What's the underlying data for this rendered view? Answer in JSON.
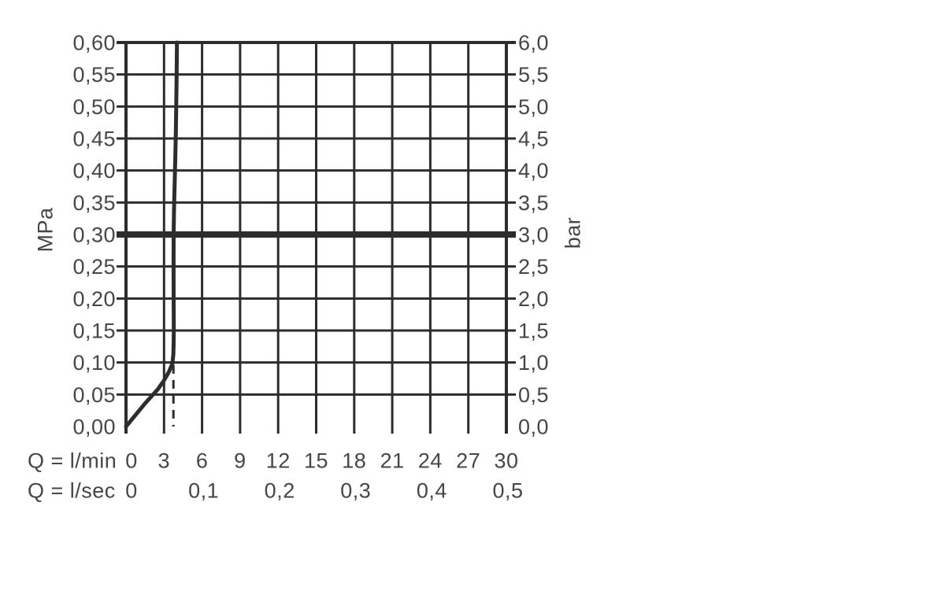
{
  "colors": {
    "background": "#ffffff",
    "line": "#2d2d2d",
    "text": "#464646"
  },
  "chart_data": {
    "type": "line",
    "grid": true,
    "y_axis_left": {
      "unit": "MPa",
      "min": 0,
      "max": 0.6,
      "step": 0.05,
      "tick_labels": [
        "0,60",
        "0,55",
        "0,50",
        "0,45",
        "0,40",
        "0,35",
        "0,30",
        "0,25",
        "0,20",
        "0,15",
        "0,10",
        "0,05",
        "0,00"
      ]
    },
    "y_axis_right": {
      "unit": "bar",
      "min": 0,
      "max": 6,
      "step": 0.5,
      "tick_labels": [
        "6,0",
        "5,5",
        "5,0",
        "4,5",
        "4,0",
        "3,5",
        "3,0",
        "2,5",
        "2,0",
        "1,5",
        "1,0",
        "0,5",
        "0,0"
      ]
    },
    "x_axis_primary": {
      "label": "Q = l/min",
      "min": 0,
      "max": 30,
      "step": 3,
      "tick_labels": [
        "0",
        "3",
        "6",
        "9",
        "12",
        "15",
        "18",
        "21",
        "24",
        "27",
        "30"
      ]
    },
    "x_axis_secondary": {
      "label": "Q = l/sec",
      "ticks": [
        {
          "label": "0",
          "at_lmin": 0
        },
        {
          "label": "0,1",
          "at_lmin": 6
        },
        {
          "label": "0,2",
          "at_lmin": 12
        },
        {
          "label": "0,3",
          "at_lmin": 18
        },
        {
          "label": "0,4",
          "at_lmin": 24
        },
        {
          "label": "0,5",
          "at_lmin": 30
        }
      ]
    },
    "reference_line_mpa": 0.3,
    "dashed_guide": {
      "at_lmin": 3.74,
      "from_mpa": 0,
      "to_mpa": 0.096
    },
    "series": [
      {
        "name": "flow-curve",
        "points_lmin_mpa": [
          [
            0,
            0
          ],
          [
            0.5,
            0.012
          ],
          [
            1.0,
            0.024
          ],
          [
            1.5,
            0.036
          ],
          [
            2.0,
            0.047
          ],
          [
            2.5,
            0.058
          ],
          [
            3.0,
            0.072
          ],
          [
            3.4,
            0.086
          ],
          [
            3.65,
            0.098
          ],
          [
            3.73,
            0.112
          ],
          [
            3.76,
            0.13
          ],
          [
            3.77,
            0.15
          ],
          [
            3.76,
            0.2
          ],
          [
            3.75,
            0.25
          ],
          [
            3.76,
            0.3
          ],
          [
            3.79,
            0.34
          ],
          [
            3.84,
            0.38
          ],
          [
            3.89,
            0.42
          ],
          [
            3.93,
            0.46
          ],
          [
            3.97,
            0.51
          ],
          [
            4.0,
            0.56
          ],
          [
            4.02,
            0.6
          ]
        ]
      }
    ]
  }
}
